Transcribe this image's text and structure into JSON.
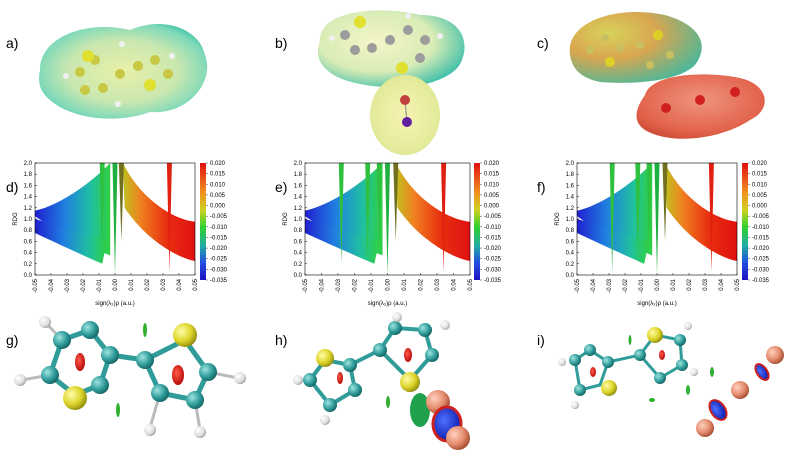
{
  "panel_labels": [
    "a)",
    "b)",
    "c)",
    "d)",
    "e)",
    "f)",
    "g)",
    "h)",
    "i)"
  ],
  "colors": {
    "carbon": "#2f9c9a",
    "sulfur": "#d8d22a",
    "hydrogen": "#e8e8e8",
    "oxygen_red": "#d82020",
    "nci_blue": "#1020c8",
    "nci_green": "#20c020",
    "nci_red": "#e01010"
  },
  "chart_data": [
    {
      "type": "scatter",
      "panel": "d)",
      "xlabel": "sign(λ₂)ρ (a.u.)",
      "ylabel": "RDG",
      "xlim": [
        -0.05,
        0.05
      ],
      "ylim": [
        0.0,
        2.0
      ],
      "xticks": [
        "-0.05",
        "-0.04",
        "-0.03",
        "-0.02",
        "-0.01",
        "0.00",
        "0.01",
        "0.02",
        "0.03",
        "0.04",
        "0.05"
      ],
      "yticks": [
        "0.0",
        "0.2",
        "0.4",
        "0.6",
        "0.8",
        "1.0",
        "1.2",
        "1.4",
        "1.6",
        "1.8",
        "2.0"
      ],
      "colorbar": {
        "range": [
          -0.035,
          0.02
        ],
        "ticks": [
          "0.020",
          "0.015",
          "0.010",
          "0.005",
          "0.000",
          "-0.005",
          "-0.010",
          "-0.015",
          "-0.020",
          "-0.025",
          "-0.030",
          "-0.035"
        ]
      },
      "spikes": [
        {
          "x": -0.008,
          "ymin": 0.35
        },
        {
          "x": 0.0,
          "ymin": 0.0
        },
        {
          "x": 0.004,
          "ymin": 0.6
        },
        {
          "x": 0.034,
          "ymin": 0.05
        }
      ]
    },
    {
      "type": "scatter",
      "panel": "e)",
      "xlabel": "sign(λ₂)ρ (a.u.)",
      "ylabel": "RDG",
      "xlim": [
        -0.05,
        0.05
      ],
      "ylim": [
        0.0,
        2.0
      ],
      "xticks": [
        "-0.05",
        "-0.04",
        "-0.03",
        "-0.02",
        "-0.01",
        "0.00",
        "0.01",
        "0.02",
        "0.03",
        "0.04",
        "0.05"
      ],
      "yticks": [
        "0.0",
        "0.2",
        "0.4",
        "0.6",
        "0.8",
        "1.0",
        "1.2",
        "1.4",
        "1.6",
        "1.8",
        "2.0"
      ],
      "colorbar": {
        "range": [
          -0.035,
          0.02
        ],
        "ticks": [
          "0.020",
          "0.015",
          "0.010",
          "0.005",
          "0.000",
          "-0.005",
          "-0.010",
          "-0.015",
          "-0.020",
          "-0.025",
          "-0.030",
          "-0.035"
        ]
      },
      "spikes": [
        {
          "x": -0.028,
          "ymin": 0.2
        },
        {
          "x": -0.012,
          "ymin": 0.3
        },
        {
          "x": -0.005,
          "ymin": 0.5
        },
        {
          "x": 0.0,
          "ymin": 0.0
        },
        {
          "x": 0.005,
          "ymin": 0.6
        },
        {
          "x": 0.034,
          "ymin": 0.05
        }
      ]
    },
    {
      "type": "scatter",
      "panel": "f)",
      "xlabel": "sign(λ₂)ρ (a.u.)",
      "ylabel": "RDG",
      "xlim": [
        -0.05,
        0.05
      ],
      "ylim": [
        0.0,
        2.0
      ],
      "xticks": [
        "-0.05",
        "-0.04",
        "-0.03",
        "-0.02",
        "-0.01",
        "0.00",
        "0.01",
        "0.02",
        "0.03",
        "0.04",
        "0.05"
      ],
      "yticks": [
        "0.0",
        "0.2",
        "0.4",
        "0.6",
        "0.8",
        "1.0",
        "1.2",
        "1.4",
        "1.6",
        "1.8",
        "2.0"
      ],
      "colorbar": {
        "range": [
          -0.035,
          0.02
        ],
        "ticks": [
          "0.020",
          "0.015",
          "0.010",
          "0.005",
          "0.000",
          "-0.005",
          "-0.010",
          "-0.015",
          "-0.020",
          "-0.025",
          "-0.030",
          "-0.035"
        ]
      },
      "spikes": [
        {
          "x": -0.028,
          "ymin": 0.05
        },
        {
          "x": -0.012,
          "ymin": 0.3
        },
        {
          "x": -0.005,
          "ymin": 0.5
        },
        {
          "x": 0.0,
          "ymin": 0.0
        },
        {
          "x": 0.005,
          "ymin": 0.6
        },
        {
          "x": 0.034,
          "ymin": 0.05
        }
      ]
    }
  ]
}
